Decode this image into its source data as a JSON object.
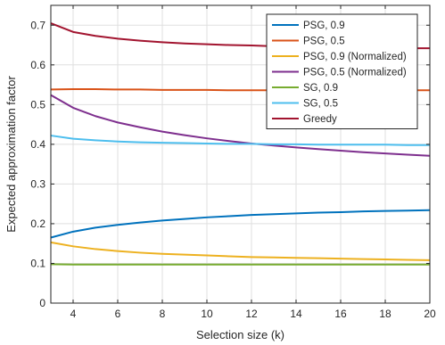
{
  "chart_data": {
    "type": "line",
    "title": "",
    "xlabel": "Selection size (k)",
    "ylabel": "Expected approximation factor",
    "xlim": [
      3,
      20
    ],
    "ylim": [
      0,
      0.75
    ],
    "xticks": [
      4,
      6,
      8,
      10,
      12,
      14,
      16,
      18,
      20
    ],
    "yticks": [
      0,
      0.1,
      0.2,
      0.3,
      0.4,
      0.5,
      0.6,
      0.7
    ],
    "xtick_labels": [
      "4",
      "6",
      "8",
      "10",
      "12",
      "14",
      "16",
      "18",
      "20"
    ],
    "ytick_labels": [
      "0",
      "0.1",
      "0.2",
      "0.3",
      "0.4",
      "0.5",
      "0.6",
      "0.7"
    ],
    "grid": true,
    "legend_position": "top-right",
    "x": [
      3,
      4,
      5,
      6,
      7,
      8,
      9,
      10,
      11,
      12,
      13,
      14,
      15,
      16,
      17,
      18,
      19,
      20
    ],
    "series": [
      {
        "name": "PSG, 0.9",
        "color": "#0072BD",
        "values": [
          0.165,
          0.18,
          0.19,
          0.197,
          0.203,
          0.208,
          0.212,
          0.216,
          0.219,
          0.222,
          0.224,
          0.226,
          0.228,
          0.229,
          0.231,
          0.232,
          0.233,
          0.234
        ]
      },
      {
        "name": "PSG, 0.5",
        "color": "#D95319",
        "values": [
          0.538,
          0.539,
          0.539,
          0.538,
          0.538,
          0.537,
          0.537,
          0.537,
          0.536,
          0.536,
          0.536,
          0.536,
          0.536,
          0.536,
          0.536,
          0.536,
          0.536,
          0.536
        ]
      },
      {
        "name": "PSG, 0.9 (Normalized)",
        "color": "#EDB120",
        "values": [
          0.153,
          0.143,
          0.136,
          0.131,
          0.127,
          0.124,
          0.122,
          0.12,
          0.118,
          0.116,
          0.115,
          0.114,
          0.113,
          0.112,
          0.111,
          0.11,
          0.109,
          0.108
        ]
      },
      {
        "name": "PSG, 0.5 (Normalized)",
        "color": "#7E2F8E",
        "values": [
          0.524,
          0.492,
          0.471,
          0.455,
          0.443,
          0.432,
          0.423,
          0.415,
          0.408,
          0.402,
          0.397,
          0.392,
          0.388,
          0.384,
          0.38,
          0.377,
          0.374,
          0.371
        ]
      },
      {
        "name": "SG, 0.9",
        "color": "#77AC30",
        "values": [
          0.098,
          0.097,
          0.097,
          0.097,
          0.097,
          0.097,
          0.097,
          0.097,
          0.097,
          0.097,
          0.097,
          0.097,
          0.097,
          0.097,
          0.097,
          0.097,
          0.097,
          0.097
        ]
      },
      {
        "name": "SG, 0.5",
        "color": "#4DBEEE",
        "values": [
          0.422,
          0.414,
          0.41,
          0.407,
          0.405,
          0.404,
          0.403,
          0.402,
          0.401,
          0.401,
          0.4,
          0.4,
          0.399,
          0.399,
          0.399,
          0.399,
          0.398,
          0.398
        ]
      },
      {
        "name": "Greedy",
        "color": "#A2142F",
        "values": [
          0.705,
          0.683,
          0.673,
          0.666,
          0.661,
          0.657,
          0.654,
          0.652,
          0.65,
          0.649,
          0.647,
          0.646,
          0.645,
          0.644,
          0.643,
          0.643,
          0.642,
          0.642
        ]
      }
    ]
  }
}
